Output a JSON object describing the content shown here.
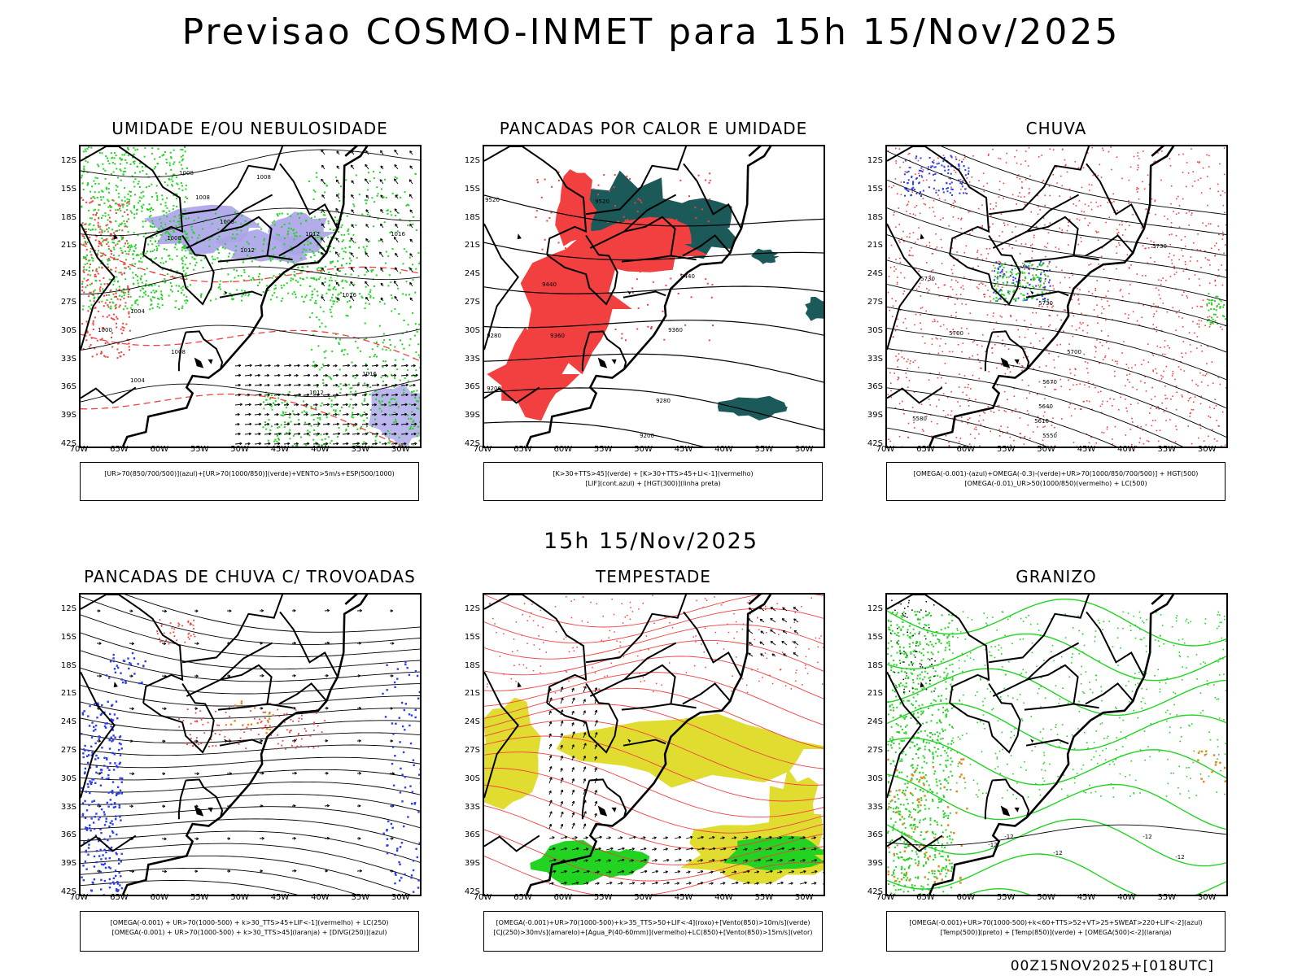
{
  "title": "Previsao COSMO-INMET  para 15h 15/Nov/2025",
  "mid_title": "15h 15/Nov/2025",
  "footer": "00Z15NOV2025+[018UTC]",
  "colors": {
    "red": "#f24040",
    "green": "#22d322",
    "blue": "#2b3df0",
    "lavender": "#aaa4e8",
    "teal": "#1c5a5a",
    "yellow": "#e0dc30",
    "orange": "#e08a20"
  },
  "chart_data": [
    {
      "type": "heatmap",
      "title": "UMIDADE E/OU NEBULOSIDADE",
      "lon_ticks": [
        "70W",
        "65W",
        "60W",
        "55W",
        "50W",
        "45W",
        "40W",
        "35W",
        "30W"
      ],
      "lat_ticks": [
        "12S",
        "15S",
        "18S",
        "21S",
        "24S",
        "27S",
        "30S",
        "33S",
        "36S",
        "39S",
        "42S"
      ],
      "contour_labels": [
        "1008",
        "1008",
        "1008",
        "1012",
        "1008",
        "1012",
        "1016",
        "1016",
        "1004",
        "1000",
        "1008",
        "1004",
        "1012",
        "1008",
        "1016"
      ],
      "legend": [
        "[UR>70(850/700/500)](azul)+[UR>70(1000/850)](verde)+VENTO>5m/s+ESP(500/1000)"
      ]
    },
    {
      "type": "heatmap",
      "title": "PANCADAS POR CALOR E UMIDADE",
      "lon_ticks": [
        "70W",
        "65W",
        "60W",
        "55W",
        "50W",
        "45W",
        "40W",
        "35W",
        "30W"
      ],
      "lat_ticks": [
        "12S",
        "15S",
        "18S",
        "21S",
        "24S",
        "27S",
        "30S",
        "33S",
        "36S",
        "39S",
        "42S"
      ],
      "contour_labels": [
        "9520",
        "9520",
        "9440",
        "9440",
        "9360",
        "9360",
        "9280",
        "9280",
        "9200",
        "9200"
      ],
      "legend": [
        "[K>30+TTS>45](verde)  +  [K>30+TTS>45+LI<-1](vermelho)",
        "[LIF](cont.azul)  +  [HGT(300)](linha preta)"
      ]
    },
    {
      "type": "heatmap",
      "title": "CHUVA",
      "lon_ticks": [
        "70W",
        "65W",
        "60W",
        "55W",
        "50W",
        "45W",
        "40W",
        "35W",
        "30W"
      ],
      "lat_ticks": [
        "12S",
        "15S",
        "18S",
        "21S",
        "24S",
        "27S",
        "30S",
        "33S",
        "36S",
        "39S",
        "42S"
      ],
      "contour_labels": [
        "5730",
        "5730",
        "5730",
        "5700",
        "5700",
        "5670",
        "5640",
        "5610",
        "5580",
        "5550"
      ],
      "legend": [
        "[OMEGA(-0.001)-(azul)+OMEGA(-0.3)-(verde)+UR>70(1000/850/700/500)]  +  HGT(500)",
        "[OMEGA(-0.01)_UR>50(1000/850)(vermelho)  +  LC(500)"
      ]
    },
    {
      "type": "heatmap",
      "title": "PANCADAS DE CHUVA C/ TROVOADAS",
      "lon_ticks": [
        "70W",
        "65W",
        "60W",
        "55W",
        "50W",
        "45W",
        "40W",
        "35W",
        "30W"
      ],
      "lat_ticks": [
        "12S",
        "15S",
        "18S",
        "21S",
        "24S",
        "27S",
        "30S",
        "33S",
        "36S",
        "39S",
        "42S"
      ],
      "contour_labels": [],
      "legend": [
        "[OMEGA(-0.001)  +  UR>70(1000-500)  +  k>30_TTS>45+LIF<-1](vermelho)  +  LC(250)",
        "[OMEGA(-0.001)  +  UR>70(1000-500)  +  k>30_TTS>45](laranja)  +  [DIVG(250)](azul)"
      ]
    },
    {
      "type": "heatmap",
      "title": "TEMPESTADE",
      "lon_ticks": [
        "70W",
        "65W",
        "60W",
        "55W",
        "50W",
        "45W",
        "40W",
        "35W",
        "30W"
      ],
      "lat_ticks": [
        "12S",
        "15S",
        "18S",
        "21S",
        "24S",
        "27S",
        "30S",
        "33S",
        "36S",
        "39S",
        "42S"
      ],
      "contour_labels": [],
      "legend": [
        "[OMEGA(-0.001)+UR>70(1000-500)+k>35_TTS>50+LIF<-4](roxo)+[Vento(850)>10m/s](verde)",
        "[CJ(250)>30m/s](amarelo)+[Agua_P(40-60mm)](vermelho)+LC(850)+[Vento(850)>15m/s](vetor)"
      ]
    },
    {
      "type": "heatmap",
      "title": "GRANIZO",
      "lon_ticks": [
        "70W",
        "65W",
        "60W",
        "55W",
        "50W",
        "45W",
        "40W",
        "35W",
        "30W"
      ],
      "lat_ticks": [
        "12S",
        "15S",
        "18S",
        "21S",
        "24S",
        "27S",
        "30S",
        "33S",
        "36S",
        "39S",
        "42S"
      ],
      "contour_labels": [
        "-12",
        "-12",
        "-12",
        "-12",
        "-12"
      ],
      "legend": [
        "[OMEGA(-0.001)+UR>70(1000-500)+k<60+TTS>52+VT>25+SWEAT>220+LIF<-2](azul)",
        "[Temp(500)](preto)  +  [Temp(850)](verde)  +  [OMEGA(500)<-2](laranja)"
      ]
    }
  ]
}
